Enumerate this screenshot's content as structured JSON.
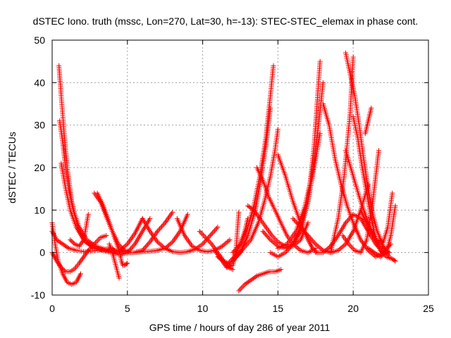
{
  "chart_data": {
    "type": "scatter",
    "title": "dSTEC Iono. truth (mssc, Lon=270, Lat=30, h=-13): STEC-STEC_elemax in phase cont.",
    "xlabel": "GPS time / hours of day 286 of year 2011",
    "ylabel": "dSTEC  / TECUs",
    "xlim": [
      0,
      25
    ],
    "ylim": [
      -10,
      50
    ],
    "xticks": [
      0,
      5,
      10,
      15,
      20,
      25
    ],
    "yticks": [
      -10,
      0,
      10,
      20,
      30,
      40,
      50
    ],
    "grid": true,
    "marker": "+",
    "series_color": "#ff0000",
    "series": [
      {
        "x": [
          0.0,
          0.2,
          0.4,
          0.7,
          1.0,
          1.3,
          1.6,
          1.9
        ],
        "y": [
          7,
          2,
          -2,
          -5,
          -7,
          -7.5,
          -7,
          -5
        ]
      },
      {
        "x": [
          0.0,
          0.3,
          0.6,
          0.9,
          1.2,
          1.5,
          1.8,
          2.1,
          2.4,
          2.8,
          3.2,
          3.6
        ],
        "y": [
          0,
          -2,
          -3.5,
          -4.5,
          -4.5,
          -3.8,
          -2.5,
          -1,
          0.5,
          2,
          3.5,
          4
        ]
      },
      {
        "x": [
          0.0,
          0.3,
          0.7,
          1.1,
          1.6,
          2.2,
          2.9,
          3.5,
          4.0,
          4.3
        ],
        "y": [
          5,
          3,
          2,
          1,
          0.5,
          0.2,
          0.5,
          0.8,
          1,
          0
        ]
      },
      {
        "x": [
          0.45,
          0.6,
          0.8,
          1.0,
          1.3,
          1.7,
          2.2,
          2.9,
          3.6,
          4.3,
          5.0
        ],
        "y": [
          44,
          37,
          28,
          20,
          12,
          6,
          2.5,
          1,
          0.5,
          0.3,
          0.2
        ]
      },
      {
        "x": [
          0.5,
          0.7,
          0.9,
          1.1,
          1.4,
          1.8,
          2.3,
          2.9,
          3.5,
          4.0,
          4.5,
          5.0
        ],
        "y": [
          31,
          26,
          20,
          15,
          10,
          6,
          3,
          1.5,
          0.8,
          0.5,
          0.3,
          0.2
        ]
      },
      {
        "x": [
          0.6,
          0.9,
          1.2,
          1.6,
          2.1,
          2.7,
          3.3,
          4.0
        ],
        "y": [
          21,
          15,
          10,
          6,
          3,
          1.2,
          0.5,
          0
        ]
      },
      {
        "x": [
          2.8,
          3.2,
          3.6,
          4.0,
          4.4,
          4.8,
          5.2
        ],
        "y": [
          14,
          12,
          8.5,
          5,
          2,
          0.5,
          0
        ]
      },
      {
        "x": [
          3.0,
          3.4,
          3.8,
          4.2,
          4.5,
          4.6,
          4.7,
          4.8,
          5.0
        ],
        "y": [
          14,
          11,
          7,
          3,
          0,
          -2,
          -3,
          -3,
          -2.5
        ]
      },
      {
        "x": [
          3.8,
          4.0,
          4.15,
          4.3,
          4.45
        ],
        "y": [
          2,
          0,
          -2,
          -4,
          -6
        ]
      },
      {
        "x": [
          1.2,
          1.5,
          1.8,
          2.1,
          2.4
        ],
        "y": [
          3,
          2,
          1.5,
          3,
          9
        ]
      },
      {
        "x": [
          4.0,
          4.5,
          5.0,
          5.5,
          6.0,
          6.5
        ],
        "y": [
          0,
          -0.5,
          0,
          2,
          5,
          8
        ]
      },
      {
        "x": [
          4.5,
          5.0,
          5.5,
          6.0
        ],
        "y": [
          0.5,
          2,
          4.5,
          8
        ]
      },
      {
        "x": [
          5.0,
          5.5,
          6.0,
          6.5,
          7.0,
          7.5,
          8.0,
          8.5,
          9.0
        ],
        "y": [
          0,
          0,
          0.2,
          0.3,
          0.5,
          1,
          2.5,
          5,
          9
        ]
      },
      {
        "x": [
          5.6,
          6.0,
          6.5,
          7.0,
          7.5,
          8.0
        ],
        "y": [
          0.2,
          0.5,
          2.5,
          5,
          7,
          9.5
        ]
      },
      {
        "x": [
          6.0,
          6.5,
          7.0,
          7.5,
          8.0,
          8.5,
          9.0,
          9.5,
          10.0,
          10.5,
          11.0
        ],
        "y": [
          8,
          5,
          2.5,
          1,
          0.2,
          0,
          0.2,
          0.8,
          2,
          4,
          6
        ]
      },
      {
        "x": [
          8.3,
          8.8,
          9.3,
          9.8,
          10.3,
          10.8,
          11.3,
          11.8
        ],
        "y": [
          8,
          4,
          1.5,
          0.5,
          0.2,
          0.5,
          1.5,
          3
        ]
      },
      {
        "x": [
          9.8,
          10.2,
          10.6,
          11.0,
          11.4,
          11.7,
          12.0
        ],
        "y": [
          5,
          3.5,
          2,
          0,
          -2,
          -3.5,
          -4
        ]
      },
      {
        "x": [
          10.8,
          11.2,
          11.6,
          12.0,
          12.2,
          12.4
        ],
        "y": [
          0.5,
          -1.5,
          -3.5,
          -3,
          0,
          9.5
        ]
      },
      {
        "x": [
          11.0,
          11.4,
          11.7,
          12.1,
          12.5,
          12.8,
          13.0
        ],
        "y": [
          -1,
          -2,
          -2.5,
          -1,
          2,
          5,
          8
        ]
      },
      {
        "x": [
          12.4,
          12.8,
          13.2,
          13.6,
          14.0,
          14.4,
          14.8,
          15.2
        ],
        "y": [
          -9,
          -7.5,
          -6.5,
          -5.5,
          -5,
          -4.5,
          -4.5,
          -4
        ]
      },
      {
        "x": [
          11.6,
          12.0,
          12.5,
          13.0,
          13.5,
          13.8,
          14.2,
          14.5
        ],
        "y": [
          -3.5,
          -2,
          0,
          4,
          10,
          16,
          25,
          34
        ]
      },
      {
        "x": [
          12.0,
          12.6,
          13.2,
          13.7,
          14.1,
          14.5,
          14.8,
          15.0
        ],
        "y": [
          -2,
          0.5,
          3,
          7,
          12,
          18,
          24,
          29
        ]
      },
      {
        "x": [
          12.0,
          12.5,
          13.0,
          13.4,
          13.8,
          14.2,
          14.5,
          14.7
        ],
        "y": [
          0,
          2,
          6,
          11,
          18,
          27,
          37,
          44
        ]
      },
      {
        "x": [
          13.0,
          13.4,
          13.8,
          14.2,
          14.6,
          15.0,
          15.5,
          16.0,
          16.5,
          17.0
        ],
        "y": [
          11,
          10,
          8,
          6,
          4,
          2.5,
          1.5,
          1.5,
          3,
          7
        ]
      },
      {
        "x": [
          13.6,
          14.0,
          14.4,
          14.8,
          15.2,
          15.6,
          16.0,
          16.5,
          17.0,
          17.5
        ],
        "y": [
          20,
          17,
          13,
          10,
          7,
          4,
          2,
          0.5,
          0,
          1
        ]
      },
      {
        "x": [
          14.5,
          15.0,
          15.5,
          16.0,
          16.5,
          17.0,
          17.4,
          17.8
        ],
        "y": [
          0,
          -1,
          0,
          2,
          6,
          12,
          20,
          28
        ]
      },
      {
        "x": [
          15.0,
          15.6,
          16.2,
          16.8,
          17.3,
          17.7,
          18.0
        ],
        "y": [
          1,
          2,
          5,
          11,
          19,
          30,
          40
        ]
      },
      {
        "x": [
          14.0,
          14.5,
          15.0,
          15.5,
          16.0,
          16.5,
          17.0,
          17.4,
          17.8
        ],
        "y": [
          5,
          3,
          1.5,
          1,
          2,
          5,
          12,
          25,
          45
        ]
      },
      {
        "x": [
          15.0,
          15.5,
          16.0,
          16.5,
          17.0,
          17.3,
          17.6
        ],
        "y": [
          23,
          18,
          12,
          7,
          3,
          1,
          0
        ]
      },
      {
        "x": [
          16.0,
          16.5,
          17.0,
          17.5,
          18.0,
          18.5,
          19.0,
          19.5,
          20.0,
          20.5,
          21.0
        ],
        "y": [
          8,
          6,
          4,
          2,
          0.5,
          0,
          0.5,
          2,
          5,
          10,
          16
        ]
      },
      {
        "x": [
          18.0,
          18.4,
          18.8,
          19.2,
          19.6,
          20.0,
          20.5,
          21.0,
          21.5,
          22.0,
          22.5
        ],
        "y": [
          35,
          30,
          22,
          16,
          11,
          7,
          3,
          0.5,
          -1,
          0,
          2
        ]
      },
      {
        "x": [
          18.5,
          19.0,
          19.4,
          19.8,
          20.0
        ],
        "y": [
          0,
          8,
          18,
          33,
          46
        ]
      },
      {
        "x": [
          19.5,
          19.8,
          20.1,
          20.4,
          20.7,
          21.0,
          21.3,
          21.6,
          22.0,
          22.4
        ],
        "y": [
          47,
          42,
          37,
          30,
          22,
          15,
          9,
          5,
          1.5,
          -1
        ]
      },
      {
        "x": [
          19.5,
          20.0,
          20.5,
          21.0,
          21.5,
          22.0,
          22.4
        ],
        "y": [
          24,
          18,
          12,
          7,
          3,
          1,
          0
        ]
      },
      {
        "x": [
          17.5,
          18.0,
          18.5,
          19.0,
          19.5,
          20.0,
          20.5,
          21.0,
          21.5,
          22.0
        ],
        "y": [
          0,
          0,
          1.5,
          4,
          7,
          9,
          8,
          5,
          2,
          0
        ]
      },
      {
        "x": [
          20.0,
          20.3,
          20.6,
          20.9,
          21.2,
          21.5,
          21.8,
          22.2,
          22.6,
          22.8
        ],
        "y": [
          32,
          27,
          20,
          14,
          8,
          3,
          0.5,
          -1,
          -1.5,
          -2
        ]
      },
      {
        "x": [
          19.3,
          19.7,
          20.1,
          20.5,
          20.9,
          21.3,
          21.7
        ],
        "y": [
          4,
          2,
          0.5,
          0,
          3,
          12,
          24
        ]
      },
      {
        "x": [
          20.5,
          21.0,
          21.5,
          22.0,
          22.3,
          22.6
        ],
        "y": [
          10,
          6,
          3,
          2.5,
          6,
          14
        ]
      },
      {
        "x": [
          21.0,
          21.4,
          21.8,
          22.2,
          22.5,
          22.8
        ],
        "y": [
          1,
          0,
          -1,
          0,
          4,
          11
        ]
      },
      {
        "x": [
          20.8,
          21.0,
          21.2
        ],
        "y": [
          28,
          31,
          34
        ]
      }
    ]
  }
}
